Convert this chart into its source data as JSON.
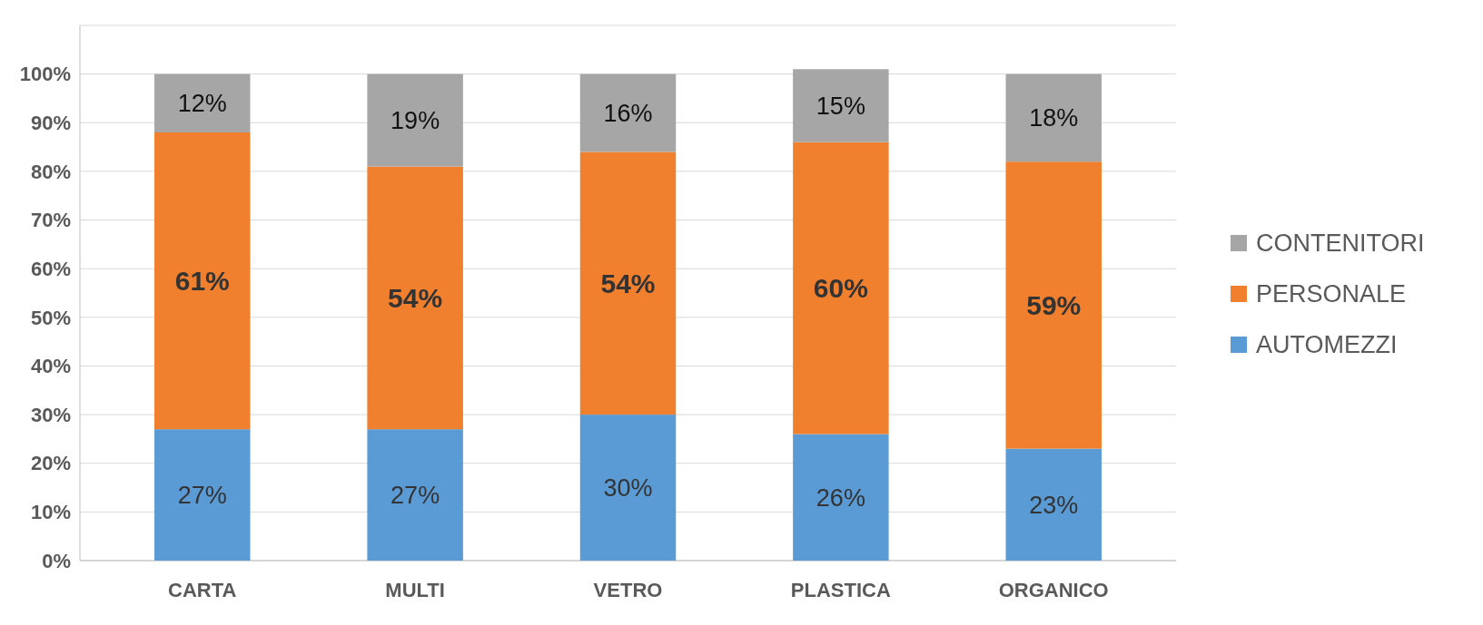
{
  "chart_data": {
    "type": "bar",
    "stacked": true,
    "categories": [
      "CARTA",
      "MULTI",
      "VETRO",
      "PLASTICA",
      "ORGANICO"
    ],
    "series": [
      {
        "name": "AUTOMEZZI",
        "color": "#5b9bd5",
        "values": [
          27,
          27,
          30,
          26,
          23
        ],
        "value_labels": [
          "27%",
          "27%",
          "30%",
          "26%",
          "23%"
        ]
      },
      {
        "name": "PERSONALE",
        "color": "#f07f2e",
        "values": [
          61,
          54,
          54,
          60,
          59
        ],
        "value_labels": [
          "61%",
          "54%",
          "54%",
          "60%",
          "59%"
        ]
      },
      {
        "name": "CONTENITORI",
        "color": "#a6a6a6",
        "values": [
          12,
          19,
          16,
          15,
          18
        ],
        "value_labels": [
          "12%",
          "19%",
          "16%",
          "15%",
          "18%"
        ]
      }
    ],
    "ylim": [
      0,
      110
    ],
    "yticks": [
      {
        "value": 0,
        "label": "0%"
      },
      {
        "value": 10,
        "label": "10%"
      },
      {
        "value": 20,
        "label": "20%"
      },
      {
        "value": 30,
        "label": "30%"
      },
      {
        "value": 40,
        "label": "40%"
      },
      {
        "value": 50,
        "label": "50%"
      },
      {
        "value": 60,
        "label": "60%"
      },
      {
        "value": 70,
        "label": "70%"
      },
      {
        "value": 80,
        "label": "80%"
      },
      {
        "value": 90,
        "label": "90%"
      },
      {
        "value": 100,
        "label": "100%"
      }
    ],
    "grid": "y",
    "legend": "right"
  }
}
